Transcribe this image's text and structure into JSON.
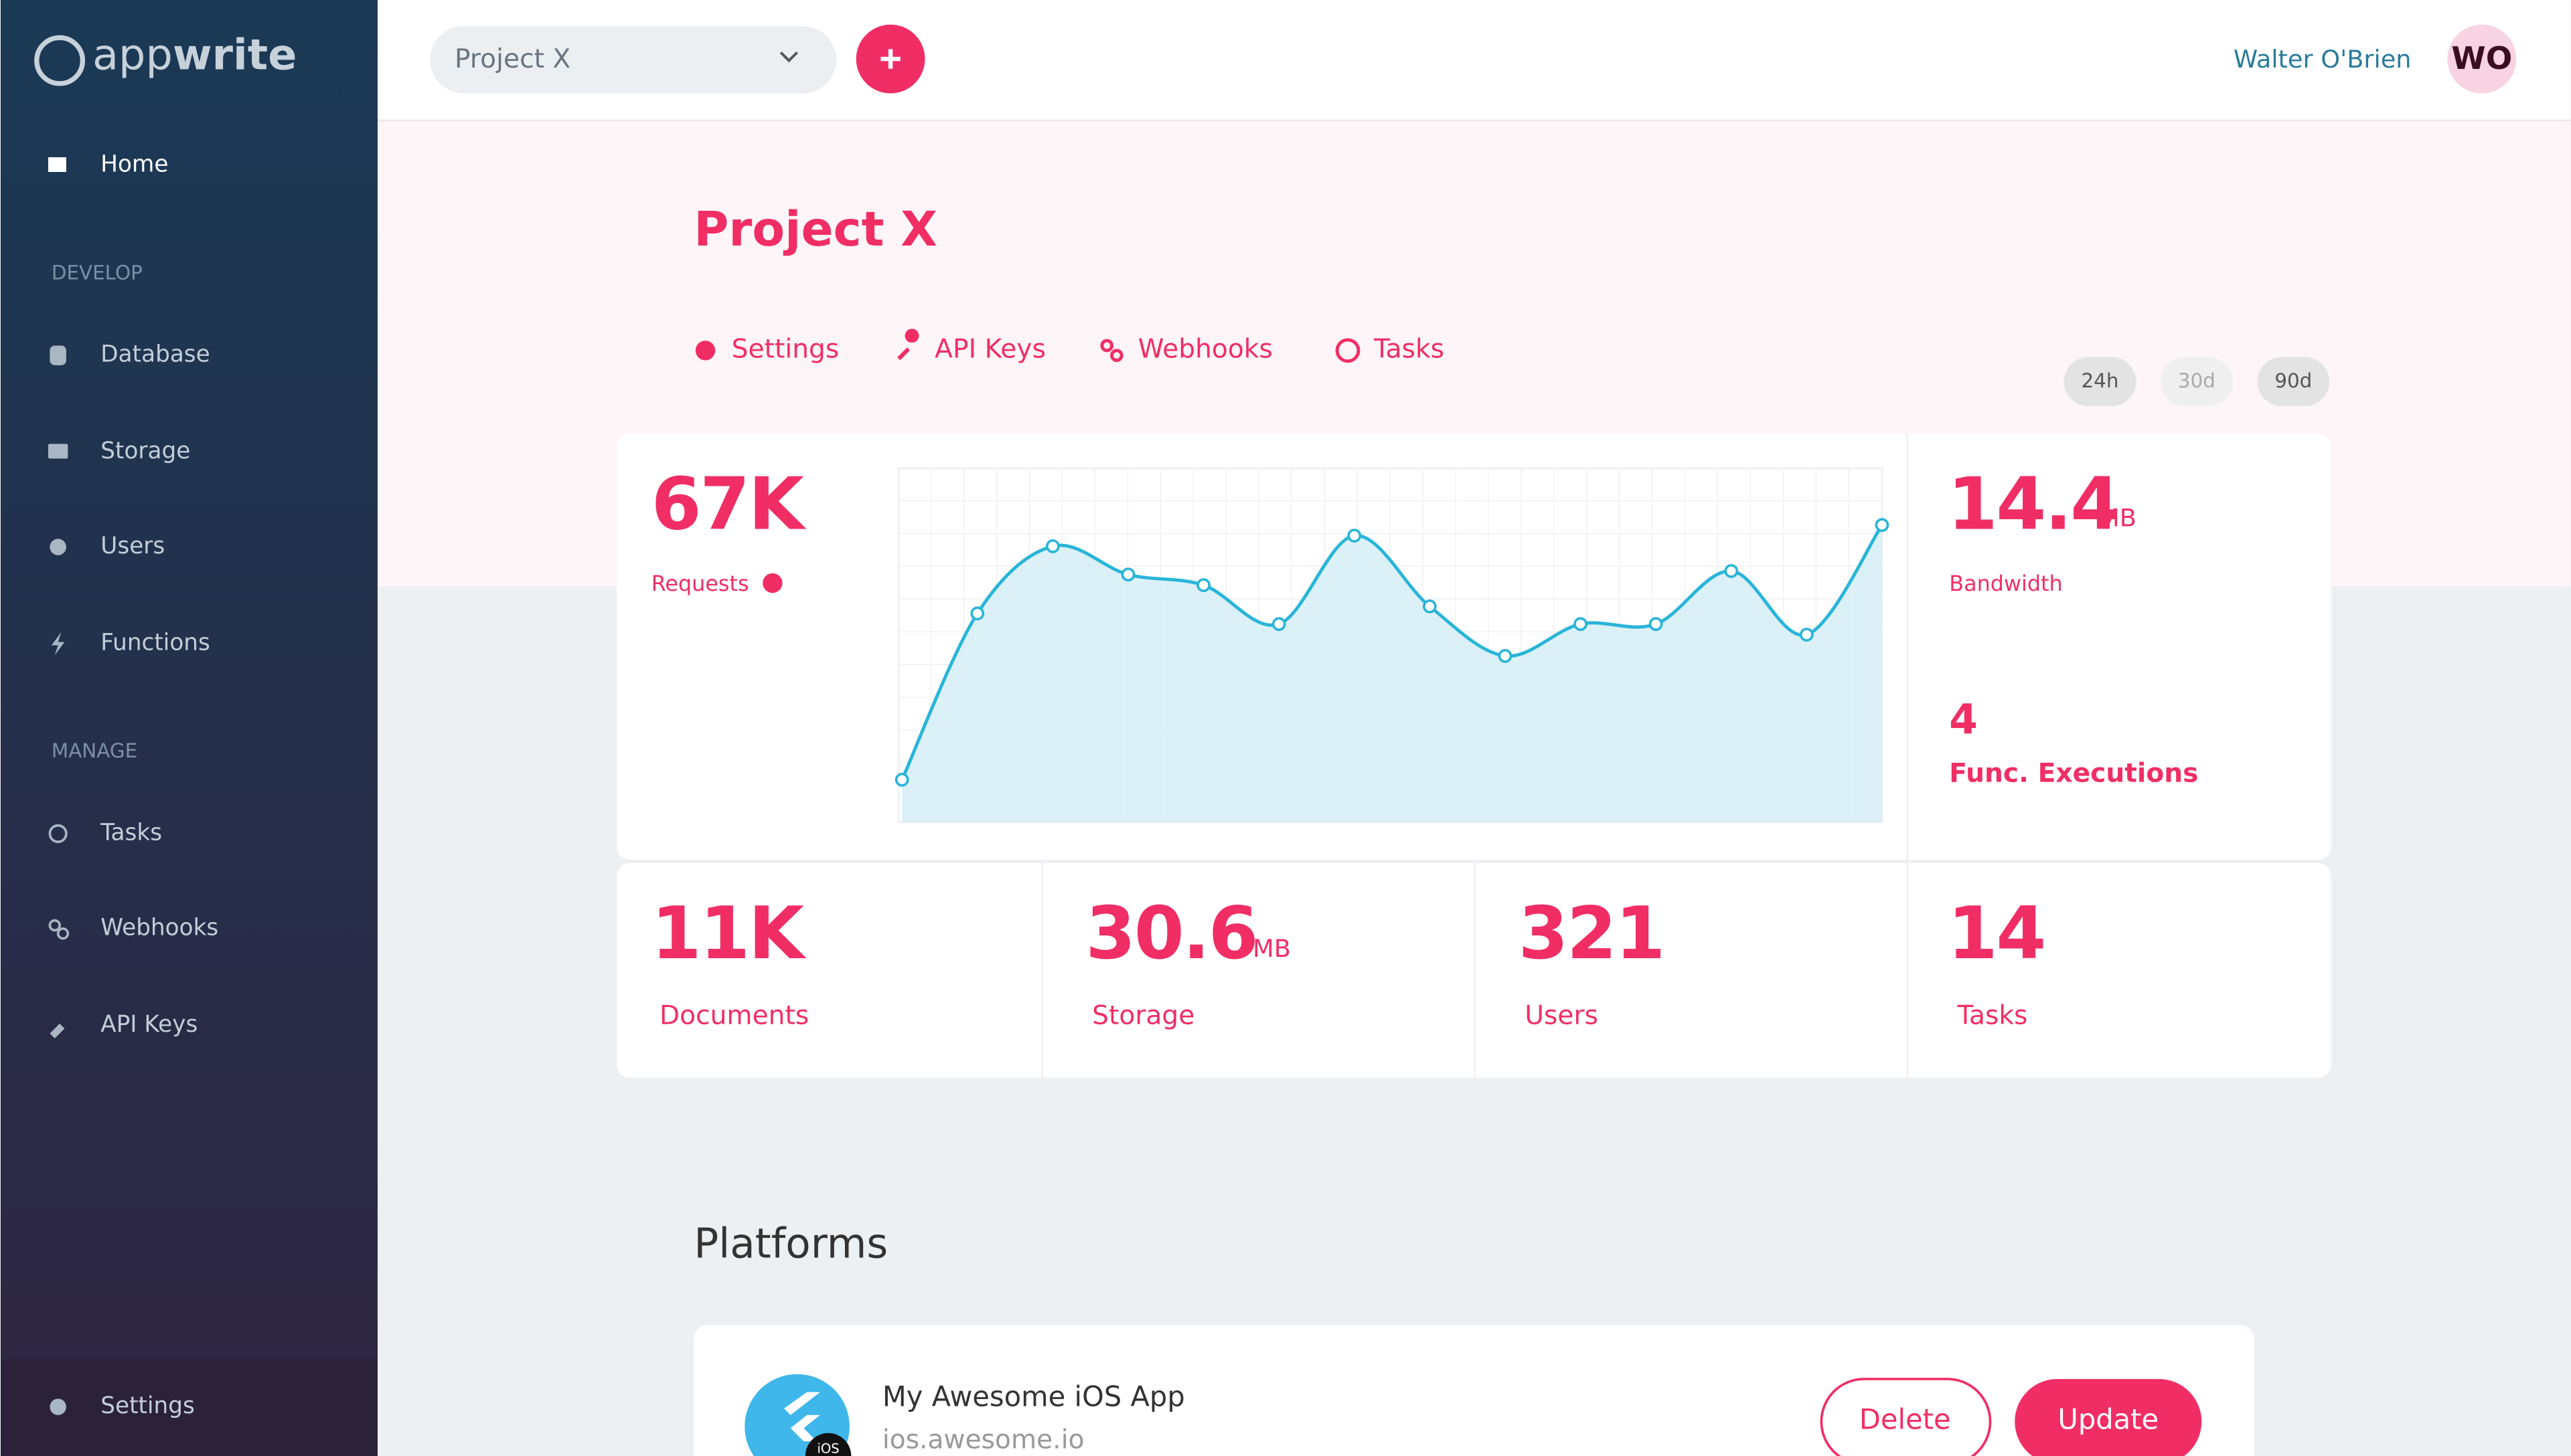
{
  "sidebar": {
    "logo": [
      "app",
      "write"
    ],
    "home": "Home",
    "sections": [
      {
        "title": "DEVELOP",
        "items": [
          "Database",
          "Storage",
          "Users",
          "Functions"
        ]
      },
      {
        "title": "MANAGE",
        "items": [
          "Tasks",
          "Webhooks",
          "API Keys"
        ]
      }
    ],
    "footer": "Settings"
  },
  "header": {
    "project": "Project X",
    "user": "Walter O'Brien",
    "avatar": "WO"
  },
  "project": {
    "title": "Project X",
    "tabs": [
      "Settings",
      "API Keys",
      "Webhooks",
      "Tasks"
    ],
    "ranges": [
      "24h",
      "30d",
      "90d"
    ]
  },
  "stats": {
    "requests": {
      "value": "67K",
      "label": "Requests"
    },
    "bandwidth": {
      "value": "14.4",
      "unit": "MB",
      "label": "Bandwidth"
    },
    "executions": {
      "value": "4",
      "label": "Func. Executions"
    },
    "documents": {
      "value": "11K",
      "label": "Documents"
    },
    "storage": {
      "value": "30.6",
      "unit": "MB",
      "label": "Storage"
    },
    "users": {
      "value": "321",
      "label": "Users"
    },
    "tasks": {
      "value": "14",
      "label": "Tasks"
    }
  },
  "chart_data": {
    "type": "area",
    "categories": [
      null,
      null,
      null,
      null,
      null,
      null,
      null,
      null,
      null,
      null,
      null,
      null,
      null,
      null
    ],
    "values": [
      12,
      59,
      78,
      70,
      67,
      56,
      81,
      61,
      47,
      56,
      56,
      71,
      53,
      84
    ],
    "ylim": [
      0,
      100
    ],
    "color": "#29b5d8",
    "fill": "#d5eef6",
    "grid": true
  },
  "platforms": {
    "title": "Platforms",
    "items": [
      {
        "name": "My Awesome iOS App",
        "host": "ios.awesome.io",
        "badge": "iOS"
      }
    ],
    "delete": "Delete",
    "update": "Update"
  }
}
